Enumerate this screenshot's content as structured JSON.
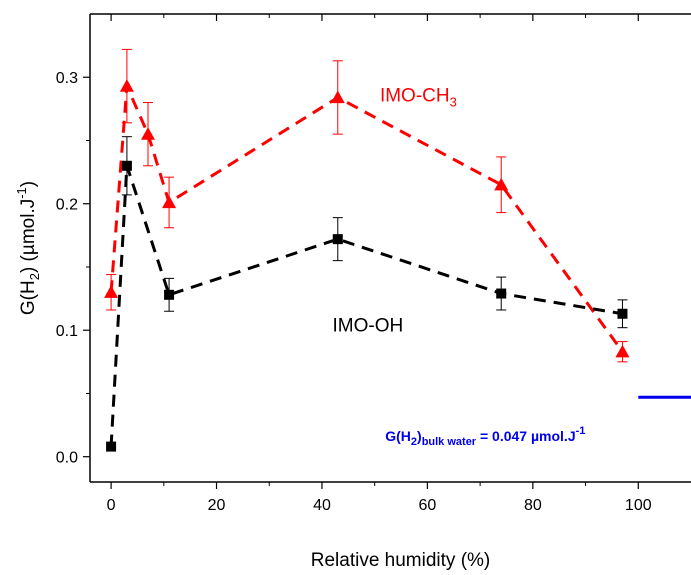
{
  "chart_data": {
    "type": "line",
    "xlabel": "Relative humidity (%)",
    "ylabel": {
      "main": "G(H",
      "sub": "2",
      "mid": ") (µmol.J",
      "sup": "-1",
      "end": ")"
    },
    "xlim": [
      -4,
      110
    ],
    "ylim": [
      -0.02,
      0.35
    ],
    "x_ticks": [
      0,
      20,
      40,
      60,
      80,
      100
    ],
    "y_ticks": [
      0.0,
      0.1,
      0.2,
      0.3
    ],
    "y_tick_labels": [
      "0.0",
      "0.1",
      "0.2",
      "0.3"
    ],
    "series": [
      {
        "label_parts": [
          "IMO-CH",
          "3"
        ],
        "color": "#ff0000",
        "marker": "triangle",
        "line_style": "dashed",
        "label_at": [
          51,
          0.281
        ],
        "points": [
          {
            "x": 0,
            "y": 0.13,
            "err": 0.014
          },
          {
            "x": 3,
            "y": 0.293,
            "err": 0.029
          },
          {
            "x": 7,
            "y": 0.255,
            "err": 0.025
          },
          {
            "x": 11,
            "y": 0.201,
            "err": 0.02
          },
          {
            "x": 43,
            "y": 0.284,
            "err": 0.029
          },
          {
            "x": 74,
            "y": 0.215,
            "err": 0.022
          },
          {
            "x": 97,
            "y": 0.083,
            "err": 0.008
          }
        ]
      },
      {
        "label_parts": [
          "IMO-OH"
        ],
        "color": "#000000",
        "marker": "square",
        "line_style": "dashed",
        "label_at": [
          42,
          0.099
        ],
        "points": [
          {
            "x": 0,
            "y": 0.008,
            "err": 0.0
          },
          {
            "x": 3,
            "y": 0.23,
            "err": 0.023
          },
          {
            "x": 11,
            "y": 0.128,
            "err": 0.013
          },
          {
            "x": 43,
            "y": 0.172,
            "err": 0.017
          },
          {
            "x": 74,
            "y": 0.129,
            "err": 0.013
          },
          {
            "x": 97,
            "y": 0.113,
            "err": 0.011
          }
        ]
      }
    ],
    "reference_line": {
      "y": 0.047,
      "x_start": 100,
      "color": "#0000ee",
      "label_parts": [
        "G(H",
        "2",
        ")",
        "bulk water",
        " = 0.047 µmol.J",
        "-1"
      ]
    }
  }
}
